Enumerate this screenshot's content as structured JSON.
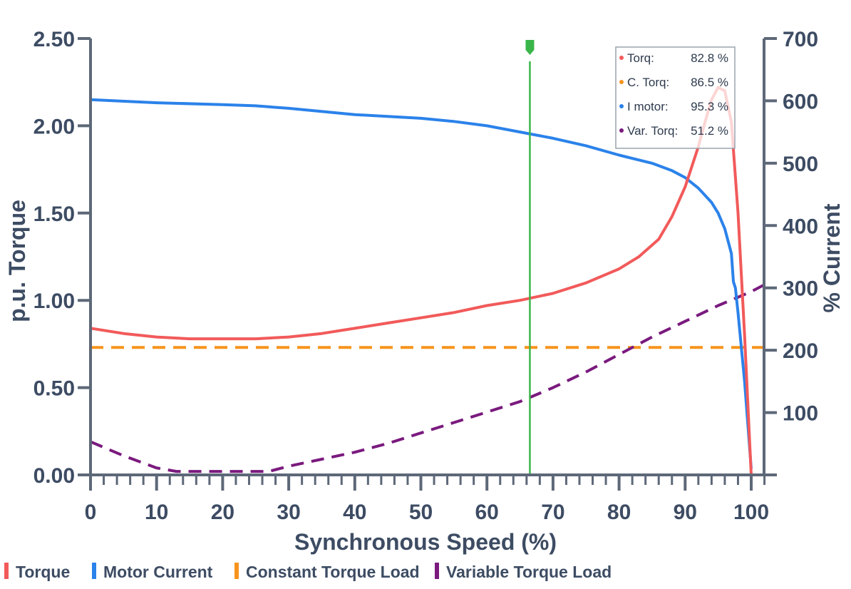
{
  "chart_data": {
    "type": "line",
    "xlabel": "Synchronous Speed (%)",
    "ylabel": "p.u. Torque",
    "y2label": "% Current",
    "xlim": [
      0,
      102
    ],
    "ylim": [
      0,
      2.5
    ],
    "y2lim": [
      0,
      700
    ],
    "x_ticks": [
      "0",
      "10",
      "20",
      "30",
      "40",
      "50",
      "60",
      "70",
      "80",
      "90",
      "100"
    ],
    "y_ticks": [
      "0.00",
      "0.50",
      "1.00",
      "1.50",
      "2.00",
      "2.50"
    ],
    "y2_ticks": [
      "100",
      "200",
      "300",
      "400",
      "500",
      "600",
      "700"
    ],
    "grid": false,
    "legend_position": "bottom",
    "series": [
      {
        "name": "Torque",
        "axis": "left",
        "color": "#f25a5a",
        "style": "solid",
        "x": [
          0,
          5,
          10,
          15,
          20,
          25,
          30,
          35,
          40,
          45,
          50,
          55,
          60,
          65,
          70,
          75,
          80,
          83,
          86,
          88,
          90,
          92,
          93,
          94,
          95,
          96,
          97,
          98,
          99,
          100
        ],
        "values": [
          0.84,
          0.81,
          0.79,
          0.78,
          0.78,
          0.78,
          0.79,
          0.81,
          0.84,
          0.87,
          0.9,
          0.93,
          0.97,
          1.0,
          1.04,
          1.1,
          1.18,
          1.25,
          1.35,
          1.48,
          1.65,
          1.88,
          2.02,
          2.15,
          2.22,
          2.2,
          2.02,
          1.5,
          0.8,
          0.0
        ]
      },
      {
        "name": "Motor Current",
        "axis": "right",
        "color": "#2b82ea",
        "style": "solid",
        "x": [
          0,
          10,
          20,
          25,
          30,
          40,
          50,
          55,
          60,
          65,
          70,
          75,
          80,
          85,
          88,
          90,
          92,
          94,
          95,
          96,
          97,
          97.3,
          97.6,
          98,
          99,
          100
        ],
        "values": [
          602,
          597,
          594,
          592,
          588,
          578,
          572,
          567,
          560,
          550,
          540,
          528,
          513,
          500,
          488,
          477,
          460,
          437,
          420,
          395,
          355,
          310,
          300,
          260,
          150,
          10
        ]
      },
      {
        "name": "Constant Torque Load",
        "axis": "left",
        "color": "#f7941d",
        "style": "dashed",
        "x": [
          0,
          102
        ],
        "values": [
          0.73,
          0.73
        ]
      },
      {
        "name": "Variable Torque Load",
        "axis": "left",
        "color": "#7a1a7e",
        "style": "dashed",
        "x": [
          0,
          5,
          10,
          13,
          15,
          20,
          25,
          27,
          30,
          35,
          40,
          45,
          50,
          55,
          60,
          65,
          70,
          75,
          80,
          85,
          90,
          95,
          100,
          102
        ],
        "values": [
          0.19,
          0.11,
          0.04,
          0.02,
          0.02,
          0.02,
          0.02,
          0.02,
          0.05,
          0.09,
          0.13,
          0.18,
          0.24,
          0.3,
          0.36,
          0.42,
          0.5,
          0.59,
          0.69,
          0.79,
          0.88,
          0.97,
          1.05,
          1.09
        ]
      }
    ],
    "cursor": {
      "x": 66.5,
      "color": "#3ab54a"
    },
    "tooltip": {
      "items": [
        {
          "label": "Torq:",
          "value": "82.8 %",
          "color": "#f25a5a"
        },
        {
          "label": "C. Torq:",
          "value": "86.5 %",
          "color": "#f7941d"
        },
        {
          "label": "I motor:",
          "value": "95.3 %",
          "color": "#2b82ea"
        },
        {
          "label": "Var. Torq:",
          "value": "51.2 %",
          "color": "#7a1a7e"
        }
      ]
    },
    "legend": [
      {
        "label": "Torque",
        "color": "#f25a5a"
      },
      {
        "label": "Motor Current",
        "color": "#2b82ea"
      },
      {
        "label": "Constant Torque Load",
        "color": "#f7941d"
      },
      {
        "label": "Variable Torque Load",
        "color": "#7a1a7e"
      }
    ]
  }
}
